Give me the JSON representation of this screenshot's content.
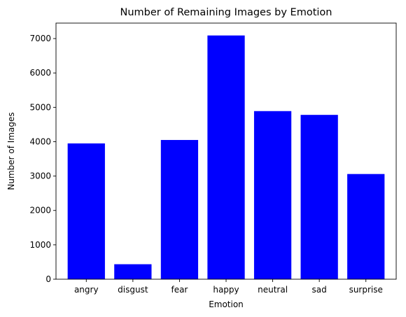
{
  "chart_data": {
    "type": "bar",
    "title": "Number of Remaining Images by Emotion",
    "xlabel": "Emotion",
    "ylabel": "Number of Images",
    "categories": [
      "angry",
      "disgust",
      "fear",
      "happy",
      "neutral",
      "sad",
      "surprise"
    ],
    "values": [
      3950,
      436,
      4050,
      7090,
      4890,
      4780,
      3060
    ],
    "ylim": [
      0,
      7450
    ],
    "yticks": [
      0,
      1000,
      2000,
      3000,
      4000,
      5000,
      6000,
      7000
    ],
    "bar_color": "#0000ff",
    "grid": false,
    "legend": "none"
  }
}
